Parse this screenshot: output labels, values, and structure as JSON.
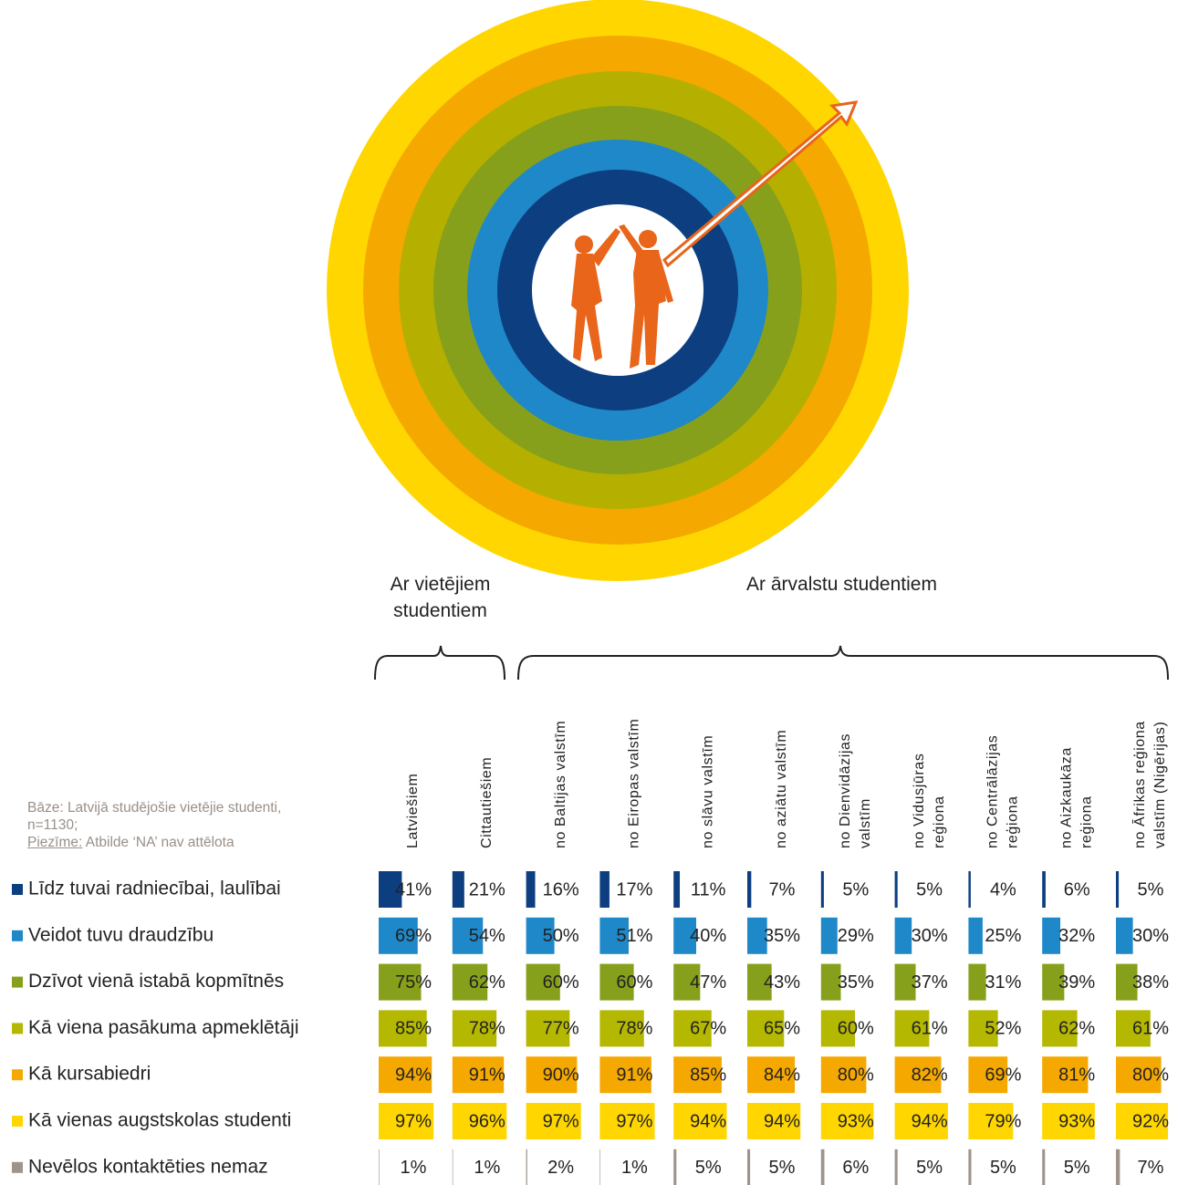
{
  "chart_data": {
    "type": "bar",
    "group_labels": [
      "Ar vietējiem studentiem",
      "Ar ārvalstu studentiem"
    ],
    "categories": [
      [
        "Latviešiem"
      ],
      [
        "Cittautiešiem"
      ],
      [
        "no Baltijas valstīm"
      ],
      [
        "no Eiropas valstīm"
      ],
      [
        "no slāvu valstīm"
      ],
      [
        "no aziātu valstīm"
      ],
      [
        "no Dienvidāzijas",
        "valstīm"
      ],
      [
        "no Vidusjūras",
        "reģiona"
      ],
      [
        "no Centrālāzijas",
        "reģiona"
      ],
      [
        "no Aizkaukāza",
        "reģiona"
      ],
      [
        "no Āfrikas reģiona",
        "valstīm (Nigērijas)"
      ]
    ],
    "footnote": {
      "base": "Bāze: Latvijā studējošie vietējie studenti, n=1130;",
      "note_label": "Piezīme:",
      "note_text": "Atbilde ‘NA’ nav attēlota"
    },
    "series": [
      {
        "name": "Līdz tuvai radniecībai, laulībai",
        "color": "#0d3f80",
        "values": [
          41,
          21,
          16,
          17,
          11,
          7,
          5,
          5,
          4,
          6,
          5
        ],
        "value_labels": [
          "41%",
          "21%",
          "16%",
          "17%",
          "11%",
          "7%",
          "5%",
          "5%",
          "4%",
          "6%",
          "5%"
        ]
      },
      {
        "name": "Veidot tuvu draudzību",
        "color": "#1f88c9",
        "values": [
          69,
          54,
          50,
          51,
          40,
          35,
          29,
          30,
          25,
          32,
          30
        ],
        "value_labels": [
          "69%",
          "54%",
          "50%",
          "51%",
          "40%",
          "35%",
          "29%",
          "30%",
          "25%",
          "32%",
          "30%"
        ]
      },
      {
        "name": "Dzīvot vienā istabā kopmītnēs",
        "color": "#87a01b",
        "values": [
          75,
          62,
          60,
          60,
          47,
          43,
          35,
          37,
          31,
          39,
          38
        ],
        "value_labels": [
          "75%",
          "62%",
          "60%",
          "60%",
          "47%",
          "43%",
          "35%",
          "37%",
          "31%",
          "39%",
          "38%"
        ]
      },
      {
        "name": "Kā viena pasākuma apmeklētāji",
        "color": "#b5b800",
        "values": [
          85,
          78,
          77,
          78,
          67,
          65,
          60,
          61,
          52,
          62,
          61
        ],
        "value_labels": [
          "85%",
          "78%",
          "77%",
          "78%",
          "67%",
          "65%",
          "60%",
          "61%",
          "52%",
          "62%",
          "61%"
        ]
      },
      {
        "name": "Kā kursabiedri",
        "color": "#f5a800",
        "values": [
          94,
          91,
          90,
          91,
          85,
          84,
          80,
          82,
          69,
          81,
          80
        ],
        "value_labels": [
          "94%",
          "91%",
          "90%",
          "91%",
          "85%",
          "84%",
          "80%",
          "82%",
          "69%",
          "81%",
          "80%"
        ]
      },
      {
        "name": "Kā vienas augstskolas studenti",
        "color": "#ffd600",
        "values": [
          97,
          96,
          97,
          97,
          94,
          94,
          93,
          94,
          79,
          93,
          92
        ],
        "value_labels": [
          "97%",
          "96%",
          "97%",
          "97%",
          "94%",
          "94%",
          "93%",
          "94%",
          "79%",
          "93%",
          "92%"
        ]
      },
      {
        "name": "Nevēlos kontaktēties nemaz",
        "color": "#9e948c",
        "values": [
          1,
          1,
          2,
          1,
          5,
          5,
          6,
          5,
          5,
          5,
          7
        ],
        "value_labels": [
          "1%",
          "1%",
          "2%",
          "1%",
          "5%",
          "5%",
          "6%",
          "5%",
          "5%",
          "5%",
          "7%"
        ]
      }
    ]
  }
}
